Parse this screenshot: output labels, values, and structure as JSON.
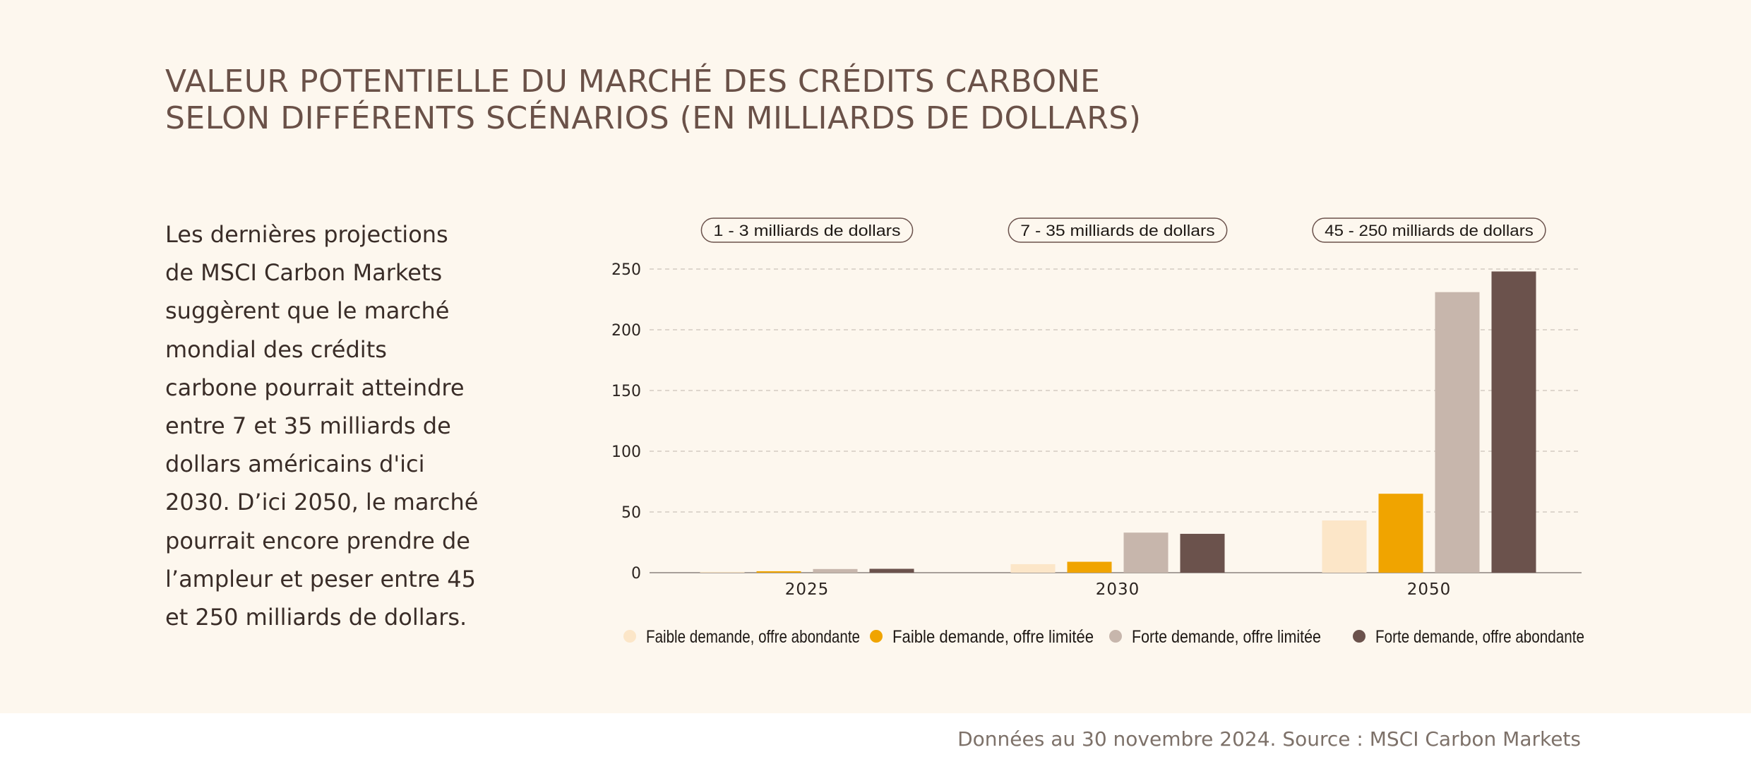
{
  "title": {
    "line1": "VALEUR POTENTIELLE DU MARCHÉ DES CRÉDITS CARBONE",
    "line2": "SELON DIFFÉRENTS SCÉNARIOS (EN MILLIARDS DE DOLLARS)"
  },
  "intro_lines": [
    "Les dernières projections",
    "de MSCI Carbon Markets",
    "suggèrent que le marché",
    "mondial des crédits",
    "carbone pourrait atteindre",
    "entre 7 et 35 milliards de",
    "dollars américains d'ici",
    "2030. D’ici 2050, le marché",
    "pourrait encore prendre de",
    "l’ampleur et peser entre 45",
    "et 250 milliards de dollars."
  ],
  "footer": {
    "source": "Données au 30 novembre 2024. Source : MSCI Carbon Markets"
  },
  "chart_data": {
    "type": "bar",
    "categories": [
      "2025",
      "2030",
      "2050"
    ],
    "series": [
      {
        "name": "Faible demande, offre abondante",
        "color": "#fce6c8",
        "values": [
          0.7,
          7,
          43
        ]
      },
      {
        "name": "Faible demande, offre limitée",
        "color": "#f0a400",
        "values": [
          1.2,
          9,
          65
        ]
      },
      {
        "name": "Forte demande, offre limitée",
        "color": "#c7b6ac",
        "values": [
          3,
          33,
          231
        ]
      },
      {
        "name": "Forte demande, offre abondante",
        "color": "#6b524c",
        "values": [
          3.2,
          32,
          248
        ]
      }
    ],
    "range_labels": [
      "1 - 3 milliards de dollars",
      "7 - 35 milliards de dollars",
      "45 - 250 milliards de dollars"
    ],
    "yticks": [
      0,
      50,
      100,
      150,
      200,
      250
    ],
    "ylim": [
      0,
      250
    ],
    "grid": true,
    "legend_position": "bottom"
  }
}
